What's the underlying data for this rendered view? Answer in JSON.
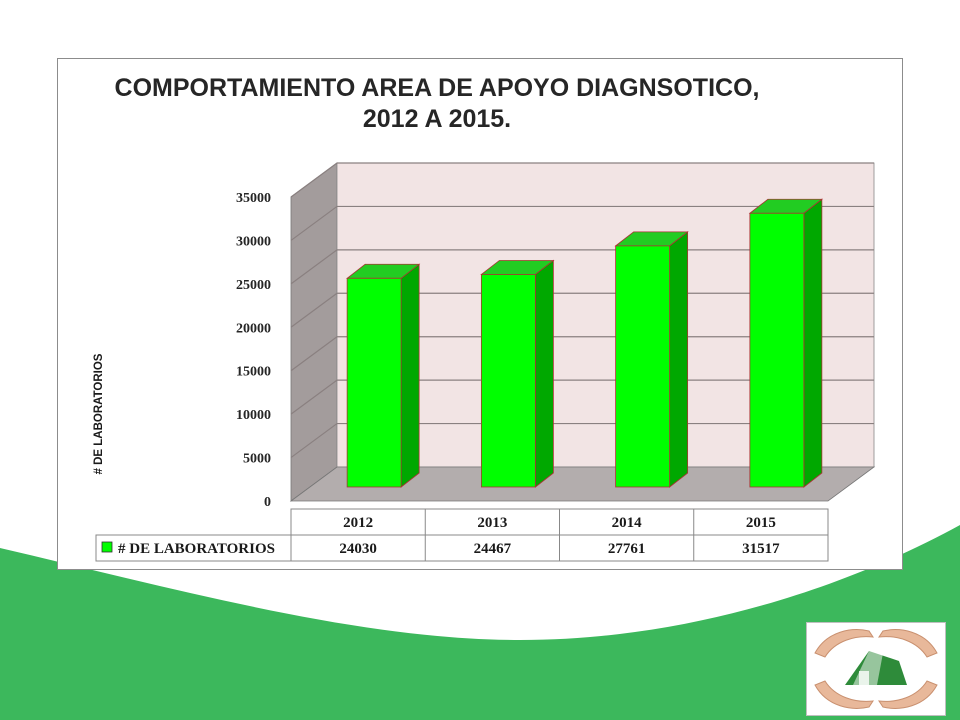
{
  "slide": {
    "colors": {
      "background": "#ffffff",
      "green_band": "#3cb85c"
    }
  },
  "chart_data": {
    "type": "bar",
    "title_lines": [
      "COMPORTAMIENTO AREA DE APOYO DIAGNSOTICO,",
      "2012 A 2015."
    ],
    "xlabel": "",
    "ylabel": "# DE  LABORATORIOS",
    "categories": [
      "2012",
      "2013",
      "2014",
      "2015"
    ],
    "series": [
      {
        "name": "# DE LABORATORIOS",
        "values": [
          24030,
          24467,
          27761,
          31517
        ],
        "color": "#00ff00"
      }
    ],
    "ylim": [
      0,
      35000
    ],
    "yticks": [
      0,
      5000,
      10000,
      15000,
      20000,
      25000,
      30000,
      35000
    ],
    "grid": true,
    "style": "3d-column",
    "data_table": true,
    "colors": {
      "wall": "#f2e4e4",
      "side_wall": "#a39c9c",
      "floor": "#b3adad",
      "bar_dark": "#00a800"
    }
  },
  "logo": {
    "icon": "hands-house-logo"
  }
}
